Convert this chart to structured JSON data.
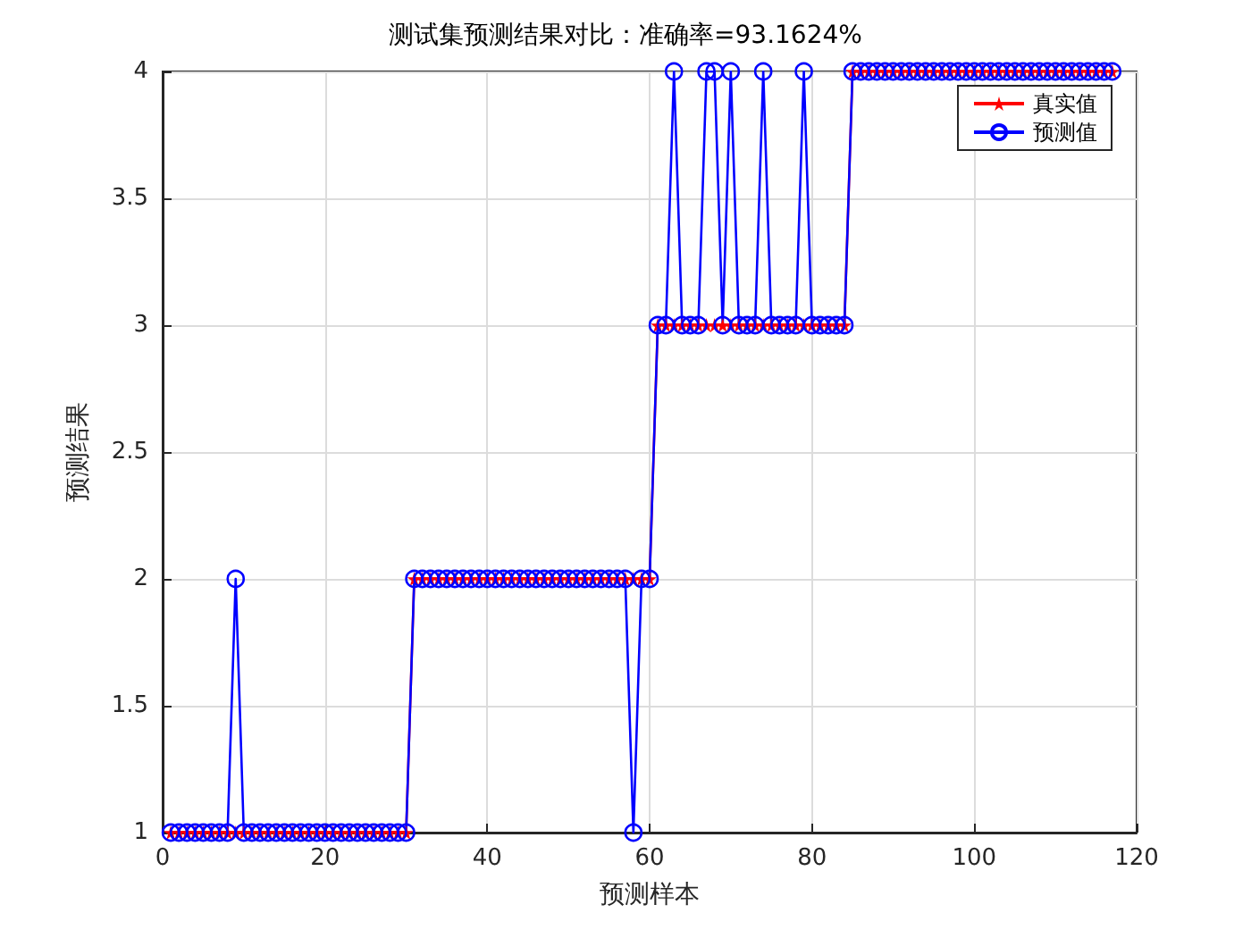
{
  "chart_data": {
    "type": "line",
    "title": "测试集预测结果对比：准确率=93.1624%",
    "xlabel": "预测样本",
    "ylabel": "预测结果",
    "x": [
      1,
      2,
      3,
      4,
      5,
      6,
      7,
      8,
      9,
      10,
      11,
      12,
      13,
      14,
      15,
      16,
      17,
      18,
      19,
      20,
      21,
      22,
      23,
      24,
      25,
      26,
      27,
      28,
      29,
      30,
      31,
      32,
      33,
      34,
      35,
      36,
      37,
      38,
      39,
      40,
      41,
      42,
      43,
      44,
      45,
      46,
      47,
      48,
      49,
      50,
      51,
      52,
      53,
      54,
      55,
      56,
      57,
      58,
      59,
      60,
      61,
      62,
      63,
      64,
      65,
      66,
      67,
      68,
      69,
      70,
      71,
      72,
      73,
      74,
      75,
      76,
      77,
      78,
      79,
      80,
      81,
      82,
      83,
      84,
      85,
      86,
      87,
      88,
      89,
      90,
      91,
      92,
      93,
      94,
      95,
      96,
      97,
      98,
      99,
      100,
      101,
      102,
      103,
      104,
      105,
      106,
      107,
      108,
      109,
      110,
      111,
      112,
      113,
      114,
      115,
      116,
      117
    ],
    "series": [
      {
        "name": "真实值",
        "color": "#ff0000",
        "marker": "star",
        "values": [
          1,
          1,
          1,
          1,
          1,
          1,
          1,
          1,
          1,
          1,
          1,
          1,
          1,
          1,
          1,
          1,
          1,
          1,
          1,
          1,
          1,
          1,
          1,
          1,
          1,
          1,
          1,
          1,
          1,
          1,
          2,
          2,
          2,
          2,
          2,
          2,
          2,
          2,
          2,
          2,
          2,
          2,
          2,
          2,
          2,
          2,
          2,
          2,
          2,
          2,
          2,
          2,
          2,
          2,
          2,
          2,
          2,
          2,
          2,
          2,
          3,
          3,
          3,
          3,
          3,
          3,
          3,
          3,
          3,
          3,
          3,
          3,
          3,
          3,
          3,
          3,
          3,
          3,
          3,
          3,
          3,
          3,
          3,
          3,
          4,
          4,
          4,
          4,
          4,
          4,
          4,
          4,
          4,
          4,
          4,
          4,
          4,
          4,
          4,
          4,
          4,
          4,
          4,
          4,
          4,
          4,
          4,
          4,
          4,
          4,
          4,
          4,
          4,
          4,
          4,
          4,
          4
        ]
      },
      {
        "name": "预测值",
        "color": "#0000ff",
        "marker": "circle",
        "values": [
          1,
          1,
          1,
          1,
          1,
          1,
          1,
          1,
          2,
          1,
          1,
          1,
          1,
          1,
          1,
          1,
          1,
          1,
          1,
          1,
          1,
          1,
          1,
          1,
          1,
          1,
          1,
          1,
          1,
          1,
          2,
          2,
          2,
          2,
          2,
          2,
          2,
          2,
          2,
          2,
          2,
          2,
          2,
          2,
          2,
          2,
          2,
          2,
          2,
          2,
          2,
          2,
          2,
          2,
          2,
          2,
          2,
          1,
          2,
          2,
          3,
          3,
          4,
          3,
          3,
          3,
          4,
          4,
          3,
          4,
          3,
          3,
          3,
          4,
          3,
          3,
          3,
          3,
          4,
          3,
          3,
          3,
          3,
          3,
          4,
          4,
          4,
          4,
          4,
          4,
          4,
          4,
          4,
          4,
          4,
          4,
          4,
          4,
          4,
          4,
          4,
          4,
          4,
          4,
          4,
          4,
          4,
          4,
          4,
          4,
          4,
          4,
          4,
          4,
          4,
          4,
          4
        ]
      }
    ],
    "xlim": [
      0,
      120
    ],
    "xticks": [
      0,
      20,
      40,
      60,
      80,
      100,
      120
    ],
    "ylim": [
      1,
      4
    ],
    "yticks": [
      1,
      1.5,
      2,
      2.5,
      3,
      3.5,
      4
    ],
    "grid": true,
    "legend": "top right",
    "line_style": "solid"
  }
}
